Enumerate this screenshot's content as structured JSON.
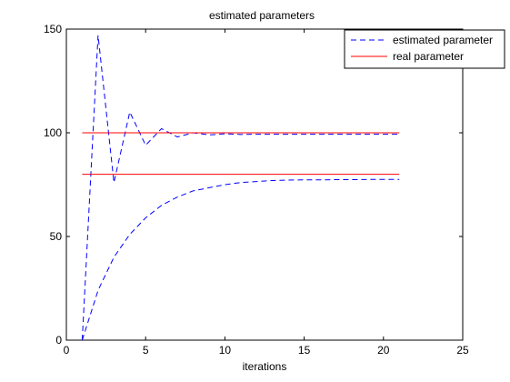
{
  "chart_data": {
    "type": "line",
    "title": "estimated parameters",
    "xlabel": "iterations",
    "ylabel": "",
    "xlim": [
      0,
      25
    ],
    "ylim": [
      0,
      150
    ],
    "xticks": [
      0,
      5,
      10,
      15,
      20,
      25
    ],
    "yticks": [
      0,
      50,
      100,
      150
    ],
    "grid": false,
    "legend": {
      "placement": "top-right",
      "entries": [
        {
          "label": "estimated parameter",
          "style": "dashed",
          "color": "#0000ff"
        },
        {
          "label": "real parameter",
          "style": "solid",
          "color": "#ff0000"
        }
      ]
    },
    "series": [
      {
        "legend_index": 0,
        "style": "dashed",
        "color": "#0000ff",
        "x": [
          1,
          2,
          3,
          4,
          5,
          6,
          7,
          8,
          9,
          10,
          11,
          12,
          13,
          14,
          15,
          16,
          17,
          18,
          19,
          20,
          21
        ],
        "y": [
          0,
          147,
          76,
          110,
          94,
          102,
          98,
          100,
          99,
          99.5,
          99.2,
          99.3,
          99.3,
          99.3,
          99.3,
          99.3,
          99.3,
          99.3,
          99.3,
          99.3,
          99.3
        ]
      },
      {
        "legend_index": 0,
        "style": "dashed",
        "color": "#0000ff",
        "x": [
          1,
          2,
          3,
          4,
          5,
          6,
          7,
          8,
          9,
          10,
          11,
          12,
          13,
          14,
          15,
          16,
          17,
          18,
          19,
          20,
          21
        ],
        "y": [
          0,
          24,
          40,
          51,
          59,
          65,
          69,
          72,
          73.5,
          75,
          76,
          76.5,
          77,
          77.2,
          77.3,
          77.3,
          77.4,
          77.4,
          77.5,
          77.5,
          77.5
        ]
      },
      {
        "legend_index": 1,
        "style": "solid",
        "color": "#ff0000",
        "x": [
          1,
          21
        ],
        "y": [
          100,
          100
        ]
      },
      {
        "legend_index": 1,
        "style": "solid",
        "color": "#ff0000",
        "x": [
          1,
          21
        ],
        "y": [
          80,
          80
        ]
      }
    ]
  }
}
